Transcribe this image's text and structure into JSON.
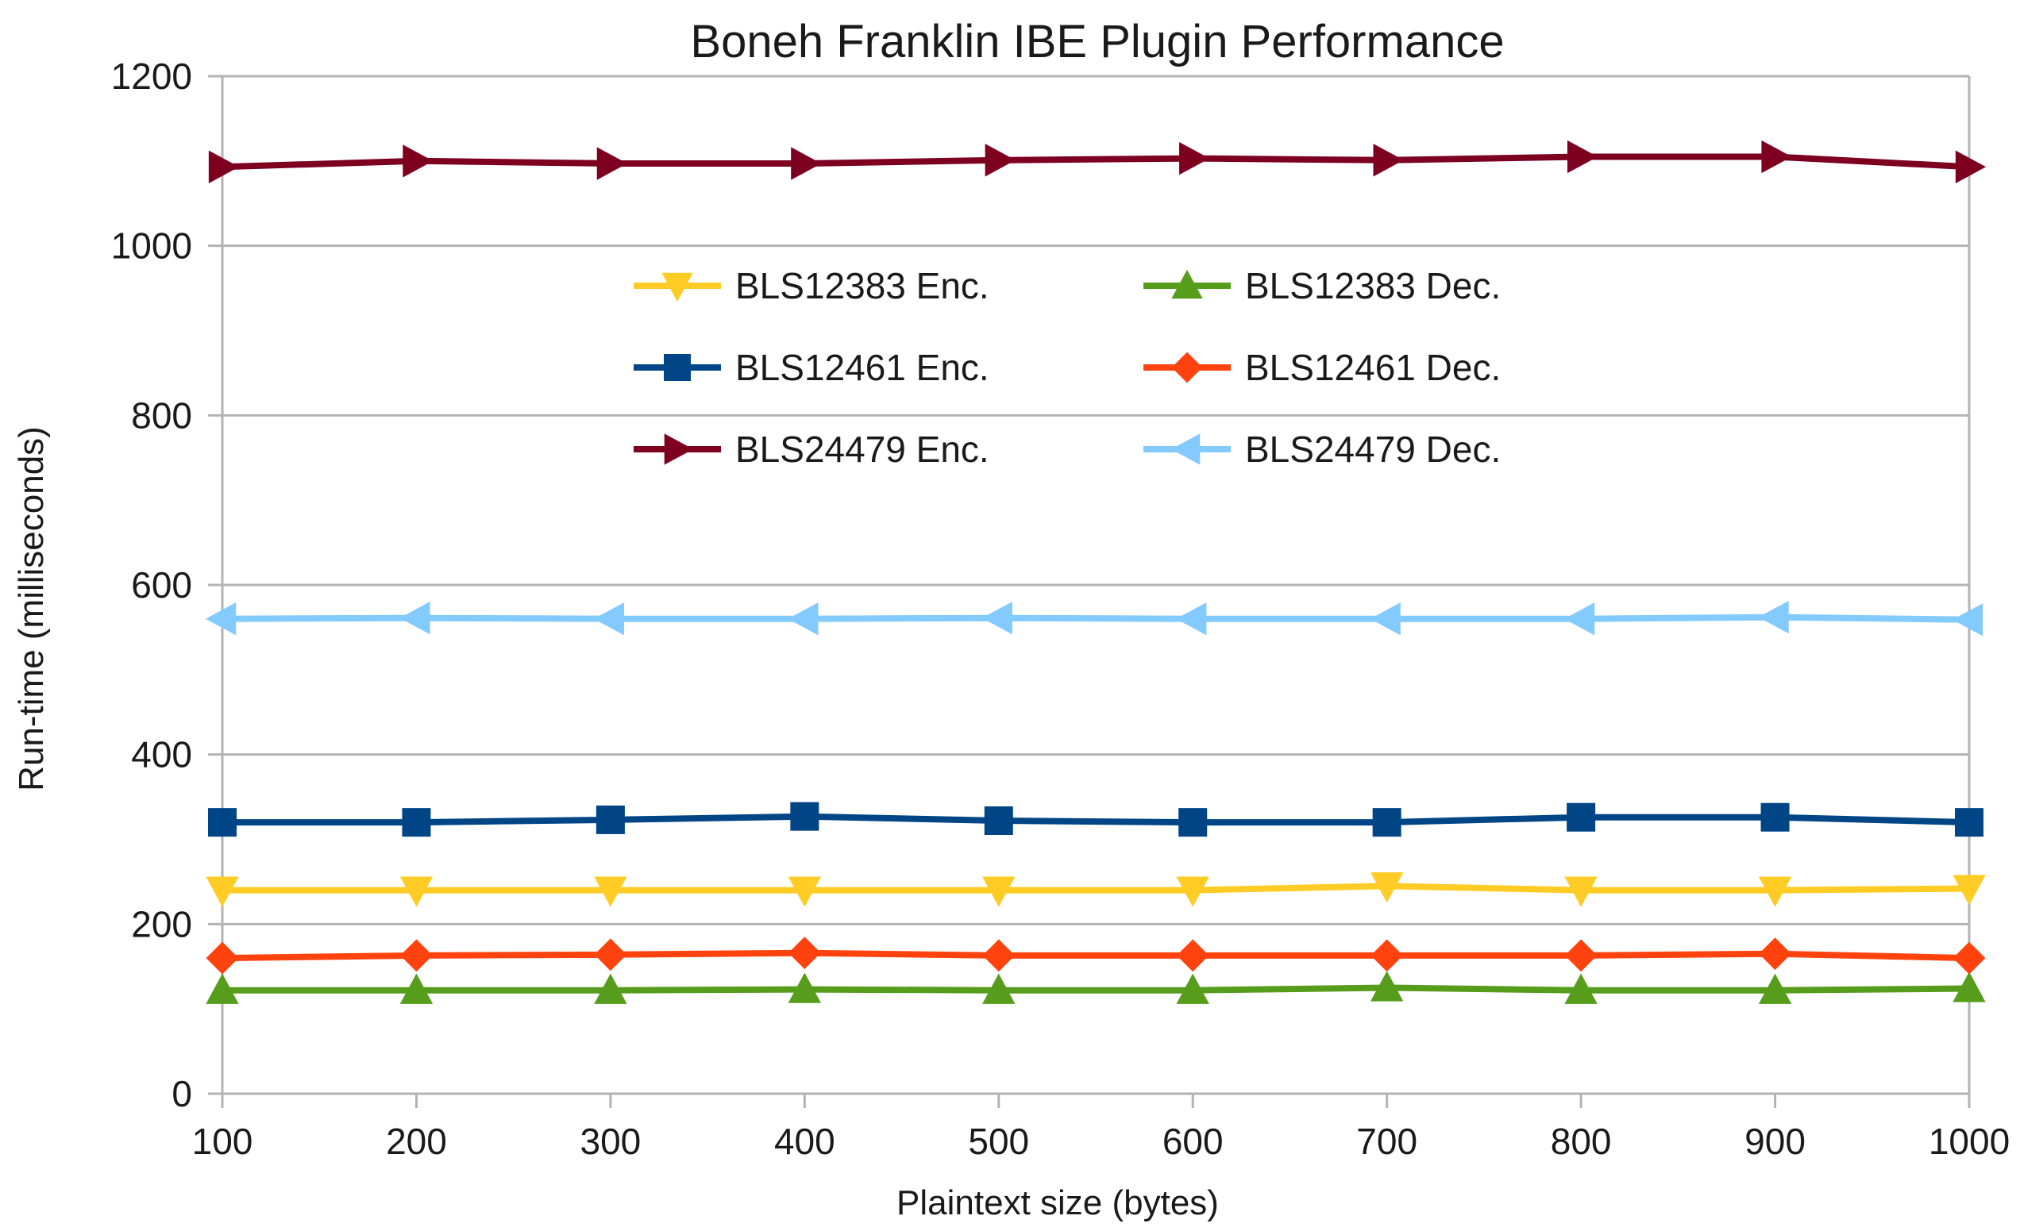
{
  "chart_data": {
    "type": "line",
    "title": "Boneh Franklin IBE Plugin Performance",
    "xlabel": "Plaintext size (bytes)",
    "ylabel": "Run-time (milliseconds)",
    "x": [
      100,
      200,
      300,
      400,
      500,
      600,
      700,
      800,
      900,
      1000
    ],
    "x_tick_labels": [
      "100",
      "200",
      "300",
      "400",
      "500",
      "600",
      "700",
      "800",
      "900",
      "1000"
    ],
    "ylim": [
      0,
      1200
    ],
    "y_ticks": [
      0,
      200,
      400,
      600,
      800,
      1000,
      1200
    ],
    "y_tick_labels": [
      "0",
      "200",
      "400",
      "600",
      "800",
      "1000",
      "1200"
    ],
    "grid": true,
    "legend_position": "upper-center",
    "series": [
      {
        "name": "BLS12383 Enc.",
        "color": "#ffcc26",
        "marker": "triangle-down",
        "values": [
          240,
          240,
          240,
          240,
          240,
          240,
          245,
          240,
          240,
          242
        ]
      },
      {
        "name": "BLS12383 Dec.",
        "color": "#579d1c",
        "marker": "triangle-up",
        "values": [
          122,
          122,
          122,
          123,
          122,
          122,
          125,
          122,
          122,
          124
        ]
      },
      {
        "name": "BLS12461 Enc.",
        "color": "#004586",
        "marker": "square",
        "values": [
          320,
          320,
          323,
          327,
          322,
          320,
          320,
          326,
          326,
          320
        ]
      },
      {
        "name": "BLS12461 Dec.",
        "color": "#ff420e",
        "marker": "diamond",
        "values": [
          160,
          163,
          164,
          166,
          163,
          163,
          163,
          163,
          165,
          160
        ]
      },
      {
        "name": "BLS24479 Enc.",
        "color": "#7e0021",
        "marker": "triangle-right",
        "values": [
          1093,
          1100,
          1097,
          1097,
          1101,
          1103,
          1101,
          1105,
          1105,
          1093
        ]
      },
      {
        "name": "BLS24479 Dec.",
        "color": "#83caff",
        "marker": "triangle-left",
        "values": [
          560,
          561,
          560,
          560,
          561,
          560,
          560,
          560,
          562,
          559
        ]
      }
    ]
  }
}
